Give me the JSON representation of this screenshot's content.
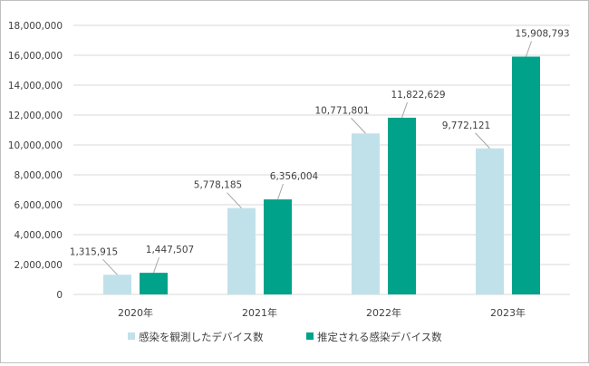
{
  "chart_data": {
    "type": "bar",
    "categories": [
      "2020年",
      "2021年",
      "2022年",
      "2023年"
    ],
    "series": [
      {
        "name": "感染を観測したデバイス数",
        "values": [
          1315915,
          5778185,
          10771801,
          9772121
        ],
        "labels": [
          "1,315,915",
          "5,778,185",
          "10,771,801",
          "9,772,121"
        ]
      },
      {
        "name": "推定される感染デバイス数",
        "values": [
          1447507,
          6356004,
          11822629,
          15908793
        ],
        "labels": [
          "1,447,507",
          "6,356,004",
          "11,822,629",
          "15,908,793"
        ]
      }
    ],
    "ylim": [
      0,
      18000000
    ],
    "yticks": [
      0,
      2000000,
      4000000,
      6000000,
      8000000,
      10000000,
      12000000,
      14000000,
      16000000,
      18000000
    ],
    "ytick_labels": [
      "0",
      "2,000,000",
      "4,000,000",
      "6,000,000",
      "8,000,000",
      "10,000,000",
      "12,000,000",
      "14,000,000",
      "16,000,000",
      "18,000,000"
    ],
    "grid": true,
    "legend_position": "bottom",
    "title": "",
    "xlabel": "",
    "ylabel": "",
    "colors": {
      "observed": "#c1e1ea",
      "estimated": "#00a38a",
      "grid": "#d9d9d9",
      "leader": "#a6a6a6"
    }
  }
}
